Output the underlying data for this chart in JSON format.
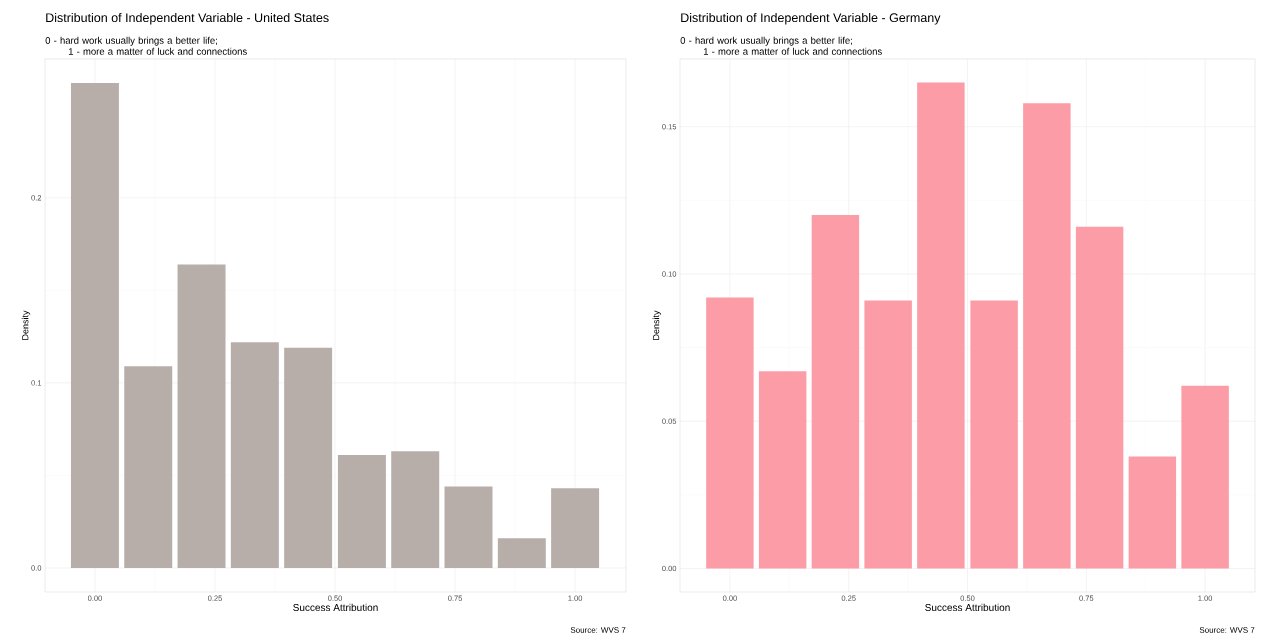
{
  "chart_data": [
    {
      "type": "bar",
      "title": "Distribution of Independent Variable - United States",
      "subtitle": "0 - hard work usually brings a better life;\n1 - more a matter of luck and connections",
      "xlabel": "Success Attribution",
      "ylabel": "Density",
      "annotations": [
        "Source: WVS 7"
      ],
      "x": [
        0,
        0.111,
        0.222,
        0.333,
        0.444,
        0.556,
        0.667,
        0.778,
        0.889,
        1
      ],
      "values": [
        0.262,
        0.109,
        0.164,
        0.122,
        0.119,
        0.061,
        0.063,
        0.044,
        0.016,
        0.043
      ],
      "color": "#b8aea9",
      "xlim": [
        -0.104,
        1.106
      ],
      "ylim": [
        -0.013,
        0.275
      ],
      "xticks": [
        {
          "value": 0,
          "label": "0.00"
        },
        {
          "value": 0.25,
          "label": "0.25"
        },
        {
          "value": 0.5,
          "label": "0.50"
        },
        {
          "value": 0.75,
          "label": "0.75"
        },
        {
          "value": 1,
          "label": "1.00"
        }
      ],
      "yticks": [
        {
          "value": 0,
          "label": "0.0"
        },
        {
          "value": 0.1,
          "label": "0.1"
        },
        {
          "value": 0.2,
          "label": "0.2"
        }
      ],
      "grid": true
    },
    {
      "type": "bar",
      "title": "Distribution of Independent Variable - Germany",
      "subtitle": "0 - hard work usually brings a better life;\n1 - more a matter of luck and connections",
      "xlabel": "Success Attribution",
      "ylabel": "Density",
      "annotations": [
        "Source: WVS 7"
      ],
      "x": [
        0,
        0.111,
        0.222,
        0.333,
        0.444,
        0.556,
        0.667,
        0.778,
        0.889,
        1
      ],
      "values": [
        0.092,
        0.067,
        0.12,
        0.091,
        0.165,
        0.091,
        0.158,
        0.116,
        0.038,
        0.062
      ],
      "color": "#fc9ca6",
      "xlim": [
        -0.105,
        1.105
      ],
      "ylim": [
        -0.008,
        0.173
      ],
      "xticks": [
        {
          "value": 0,
          "label": "0.00"
        },
        {
          "value": 0.25,
          "label": "0.25"
        },
        {
          "value": 0.5,
          "label": "0.50"
        },
        {
          "value": 0.75,
          "label": "0.75"
        },
        {
          "value": 1,
          "label": "1.00"
        }
      ],
      "yticks": [
        {
          "value": 0,
          "label": "0.00"
        },
        {
          "value": 0.05,
          "label": "0.05"
        },
        {
          "value": 0.1,
          "label": "0.10"
        },
        {
          "value": 0.15,
          "label": "0.15"
        }
      ],
      "grid": true
    }
  ]
}
